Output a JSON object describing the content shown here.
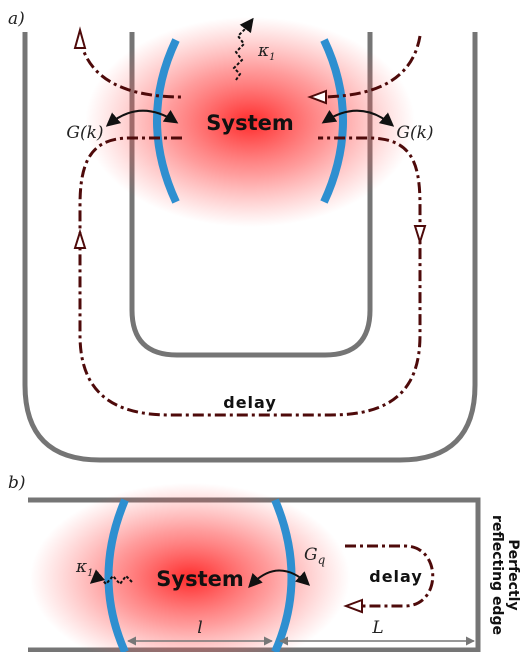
{
  "panel_a": {
    "label": "a)",
    "kappa": "κ",
    "kappa_sub": "1",
    "system": "System",
    "coupling_left": "G(k)",
    "coupling_right": "G(k)",
    "delay": "delay"
  },
  "panel_b": {
    "label": "b)",
    "kappa": "κ",
    "kappa_sub": "1",
    "system": "System",
    "coupling": "G",
    "coupling_sub": "q",
    "delay": "delay",
    "length_system": "l",
    "length_delay": "L",
    "edge_label_line1": "Perfectly",
    "edge_label_line2": "reflecting edge"
  }
}
